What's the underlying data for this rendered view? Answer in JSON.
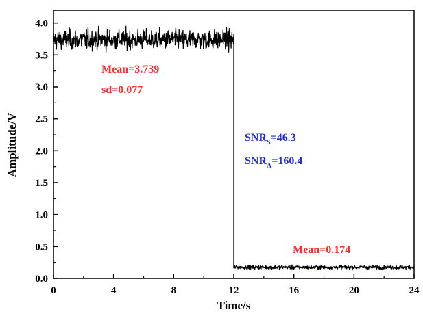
{
  "chart_data": {
    "type": "line",
    "title": "",
    "xlabel": "Time/s",
    "ylabel": "Amplitude/V",
    "xlim": [
      0,
      24
    ],
    "ylim": [
      0.0,
      4.2
    ],
    "xticks": [
      "0",
      "4",
      "8",
      "12",
      "16",
      "20",
      "24"
    ],
    "yticks": [
      "0.0",
      "0.5",
      "1.0",
      "1.5",
      "2.0",
      "2.5",
      "3.0",
      "3.5",
      "4.0"
    ],
    "grid": false,
    "series": [
      {
        "color": "#000000",
        "segments": [
          {
            "x_start": 0,
            "x_end": 12,
            "mean": 3.739,
            "sd": 0.077
          },
          {
            "x_start": 12,
            "x_end": 24,
            "mean": 0.174,
            "sd": 0.015
          }
        ]
      }
    ],
    "annotations": [
      {
        "text": "Mean=3.739",
        "color": "#ff2a2a"
      },
      {
        "text": "sd=0.077",
        "color": "#ff2a2a"
      },
      {
        "base": "SNR",
        "sub": "S",
        "rest": "=46.3",
        "color": "#1f2fd6"
      },
      {
        "base": "SNR",
        "sub": "A",
        "rest": "=160.4",
        "color": "#1f2fd6"
      },
      {
        "text": "Mean=0.174",
        "color": "#ff2a2a"
      }
    ]
  }
}
